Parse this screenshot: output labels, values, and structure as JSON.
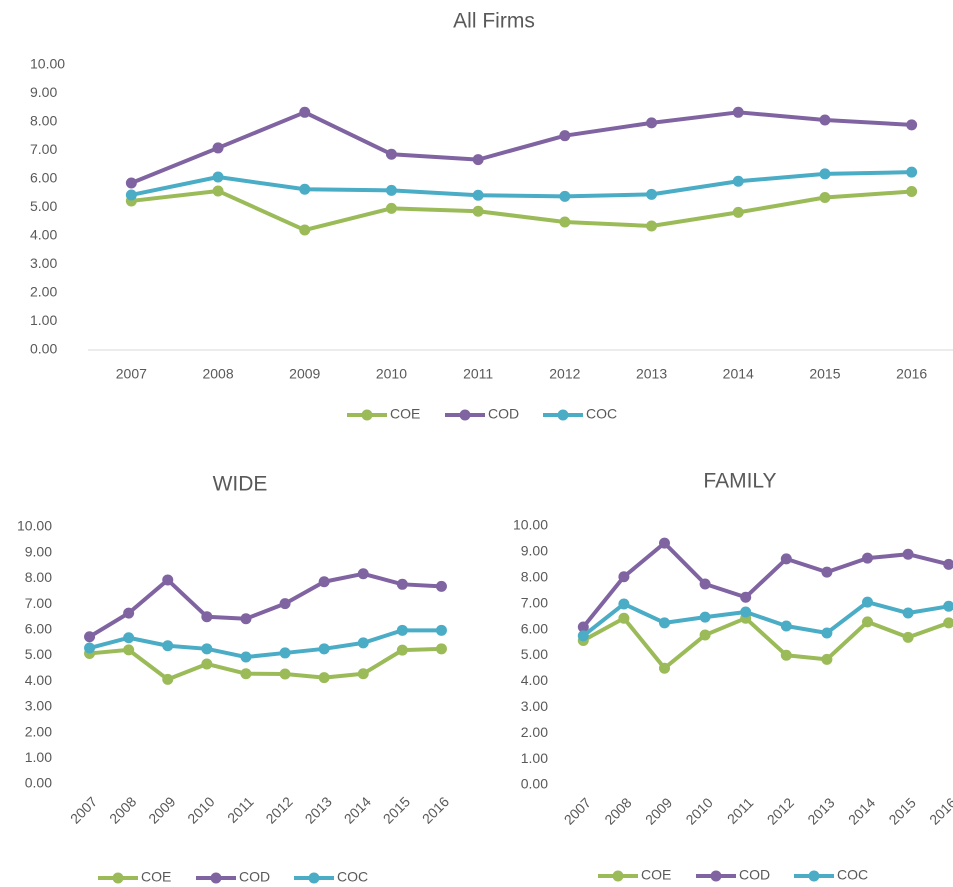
{
  "chart_data": [
    {
      "type": "line",
      "title": "All Firms",
      "categories": [
        "2007",
        "2008",
        "2009",
        "2010",
        "2011",
        "2012",
        "2013",
        "2014",
        "2015",
        "2016"
      ],
      "series": [
        {
          "name": "COE",
          "color": "#9bbb59",
          "values": [
            5.23,
            5.58,
            4.21,
            4.97,
            4.87,
            4.49,
            4.35,
            4.83,
            5.35,
            5.56
          ]
        },
        {
          "name": "COD",
          "color": "#8064a2",
          "values": [
            5.86,
            7.09,
            8.34,
            6.87,
            6.68,
            7.52,
            7.97,
            8.34,
            8.07,
            7.9
          ]
        },
        {
          "name": "COC",
          "color": "#4bacc6",
          "values": [
            5.44,
            6.07,
            5.64,
            5.6,
            5.43,
            5.39,
            5.46,
            5.92,
            6.18,
            6.24
          ]
        }
      ],
      "ylim": [
        0,
        10
      ],
      "yticks": [
        {
          "value": 0,
          "label": "0.00"
        },
        {
          "value": 1,
          "label": "1.00"
        },
        {
          "value": 2,
          "label": "2.00"
        },
        {
          "value": 3,
          "label": "3.00"
        },
        {
          "value": 4,
          "label": "4.00"
        },
        {
          "value": 5,
          "label": "5.00"
        },
        {
          "value": 6,
          "label": "6.00"
        },
        {
          "value": 7,
          "label": "7.00"
        },
        {
          "value": 8,
          "label": "8.00"
        },
        {
          "value": 9,
          "label": "9.00"
        },
        {
          "value": 10,
          "label": "10.00"
        }
      ],
      "grid": false,
      "legend": "bottom"
    },
    {
      "type": "line",
      "title": "WIDE",
      "categories": [
        "2007",
        "2008",
        "2009",
        "2010",
        "2011",
        "2012",
        "2013",
        "2014",
        "2015",
        "2016"
      ],
      "series": [
        {
          "name": "COE",
          "color": "#9bbb59",
          "values": [
            5.08,
            5.22,
            4.07,
            4.67,
            4.29,
            4.28,
            4.14,
            4.29,
            5.21,
            5.26
          ]
        },
        {
          "name": "COD",
          "color": "#8064a2",
          "values": [
            5.73,
            6.65,
            7.94,
            6.51,
            6.43,
            7.02,
            7.87,
            8.18,
            7.77,
            7.69
          ]
        },
        {
          "name": "COC",
          "color": "#4bacc6",
          "values": [
            5.29,
            5.69,
            5.38,
            5.26,
            4.94,
            5.1,
            5.26,
            5.49,
            5.98,
            5.98
          ]
        }
      ],
      "ylim": [
        0,
        10
      ],
      "yticks": [
        {
          "value": 0,
          "label": "0.00"
        },
        {
          "value": 1,
          "label": "1.00"
        },
        {
          "value": 2,
          "label": "2.00"
        },
        {
          "value": 3,
          "label": "3.00"
        },
        {
          "value": 4,
          "label": "4.00"
        },
        {
          "value": 5,
          "label": "5.00"
        },
        {
          "value": 6,
          "label": "6.00"
        },
        {
          "value": 7,
          "label": "7.00"
        },
        {
          "value": 8,
          "label": "8.00"
        },
        {
          "value": 9,
          "label": "9.00"
        },
        {
          "value": 10,
          "label": "10.00"
        }
      ],
      "grid": false,
      "legend": "bottom"
    },
    {
      "type": "line",
      "title": "FAMILY",
      "categories": [
        "2007",
        "2008",
        "2009",
        "2010",
        "2011",
        "2012",
        "2013",
        "2014",
        "2015",
        "2016"
      ],
      "series": [
        {
          "name": "COE",
          "color": "#9bbb59",
          "values": [
            5.58,
            6.44,
            4.51,
            5.79,
            6.44,
            5.01,
            4.85,
            6.3,
            5.7,
            6.26
          ]
        },
        {
          "name": "COD",
          "color": "#8064a2",
          "values": [
            6.1,
            8.04,
            9.34,
            7.76,
            7.25,
            8.73,
            8.22,
            8.76,
            8.91,
            8.52
          ]
        },
        {
          "name": "COC",
          "color": "#4bacc6",
          "values": [
            5.76,
            6.99,
            6.26,
            6.48,
            6.68,
            6.14,
            5.87,
            7.06,
            6.64,
            6.9
          ]
        }
      ],
      "ylim": [
        0,
        10
      ],
      "yticks": [
        {
          "value": 0,
          "label": "0.00"
        },
        {
          "value": 1,
          "label": "1.00"
        },
        {
          "value": 2,
          "label": "2.00"
        },
        {
          "value": 3,
          "label": "3.00"
        },
        {
          "value": 4,
          "label": "4.00"
        },
        {
          "value": 5,
          "label": "5.00"
        },
        {
          "value": 6,
          "label": "6.00"
        },
        {
          "value": 7,
          "label": "7.00"
        },
        {
          "value": 8,
          "label": "8.00"
        },
        {
          "value": 9,
          "label": "9.00"
        },
        {
          "value": 10,
          "label": "10.00"
        }
      ],
      "grid": false,
      "legend": "bottom"
    }
  ]
}
